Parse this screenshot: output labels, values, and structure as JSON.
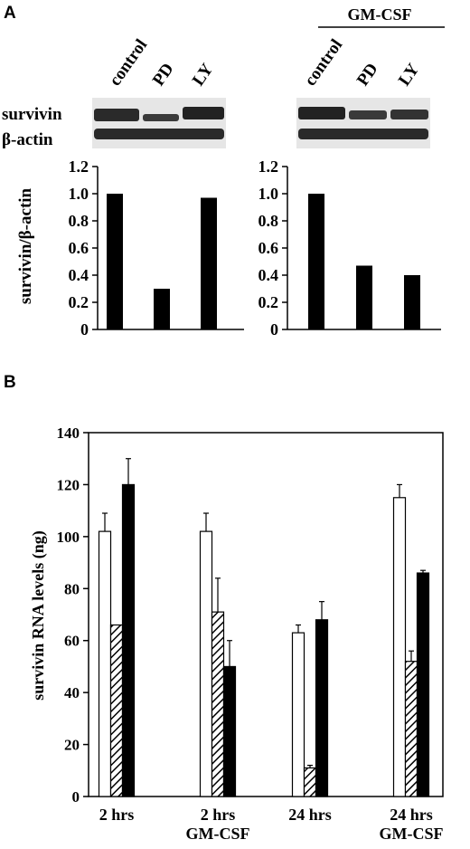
{
  "panel_a": {
    "label": "A",
    "treatment_header": "GM-CSF",
    "blot_rows": [
      "survivin",
      "β-actin"
    ],
    "lane_labels": [
      "control",
      "PD",
      "LY"
    ]
  },
  "panel_b": {
    "label": "B"
  },
  "colors": {
    "ink": "#000000",
    "paper": "#ffffff",
    "blot_bg": "#e6e6e6",
    "band": "#2a2a2a"
  },
  "chart_data": [
    {
      "type": "bar",
      "panel": "A-left",
      "categories": [
        "control",
        "PD",
        "LY"
      ],
      "values": [
        1.0,
        0.3,
        0.97
      ],
      "ylabel": "survivin/β-actin",
      "ylim": [
        0,
        1.2
      ],
      "yticks": [
        "0",
        "0.2",
        "0.4",
        "0.6",
        "0.8",
        "1.0",
        "1.2"
      ],
      "bar_color": "#000000"
    },
    {
      "type": "bar",
      "panel": "A-right",
      "title": "GM-CSF",
      "categories": [
        "control",
        "PD",
        "LY"
      ],
      "values": [
        1.0,
        0.47,
        0.4
      ],
      "ylim": [
        0,
        1.2
      ],
      "yticks": [
        "0",
        "0.2",
        "0.4",
        "0.6",
        "0.8",
        "1.0",
        "1.2"
      ],
      "bar_color": "#000000"
    },
    {
      "type": "bar",
      "panel": "B",
      "ylabel": "survivin RNA levels (ng)",
      "ylim": [
        0,
        140
      ],
      "yticks": [
        "0",
        "20",
        "40",
        "60",
        "80",
        "100",
        "120",
        "140"
      ],
      "categories": [
        [
          "2 hrs"
        ],
        [
          "2 hrs",
          "GM-CSF"
        ],
        [
          "24 hrs"
        ],
        [
          "24 hrs",
          "GM-CSF"
        ]
      ],
      "series": [
        {
          "style": "open",
          "values": [
            102,
            102,
            63,
            115
          ],
          "errors": [
            7,
            7,
            3,
            5
          ]
        },
        {
          "style": "hatched",
          "values": [
            66,
            71,
            11,
            52
          ],
          "errors": [
            0,
            13,
            1,
            4
          ]
        },
        {
          "style": "solid",
          "values": [
            120,
            50,
            68,
            86
          ],
          "errors": [
            10,
            10,
            7,
            1
          ]
        }
      ]
    }
  ]
}
